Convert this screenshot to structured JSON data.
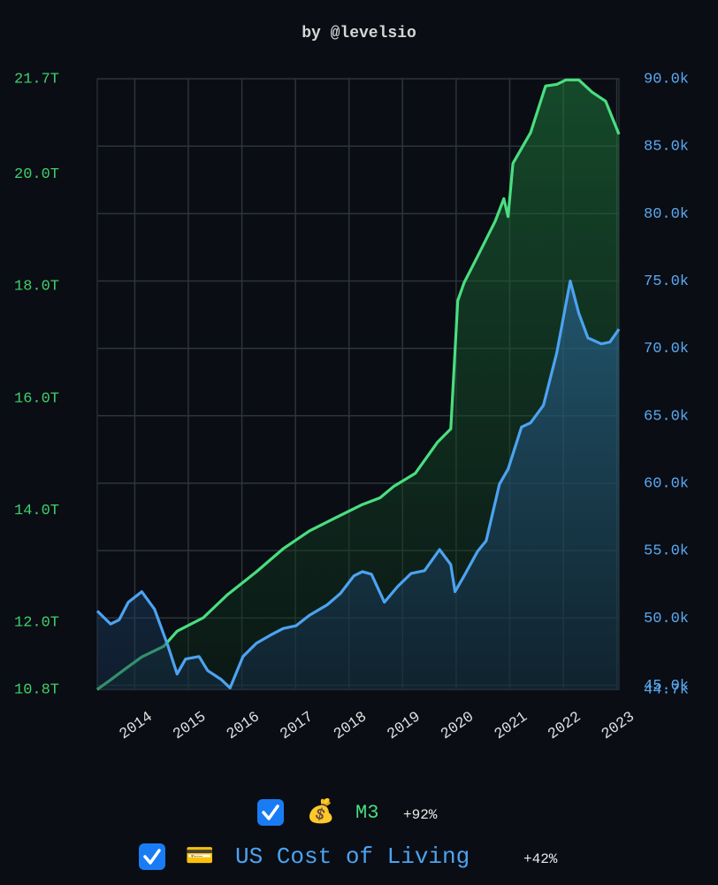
{
  "chart_data": {
    "type": "line",
    "title": "by @levelsio",
    "xlim": [
      2013.3,
      2023.04
    ],
    "xticks": [
      2014,
      2015,
      2016,
      2017,
      2018,
      2019,
      2020,
      2021,
      2022,
      2023
    ],
    "ylim": [
      10.8,
      21.7
    ],
    "yticks": [
      {
        "value": 10.8,
        "label": "10.8T"
      },
      {
        "value": 12,
        "label": "12.0T"
      },
      {
        "value": 14,
        "label": "14.0T"
      },
      {
        "value": 16,
        "label": "16.0T"
      },
      {
        "value": 18,
        "label": "18.0T"
      },
      {
        "value": 20,
        "label": "20.0T"
      },
      {
        "value": 21.7,
        "label": "21.7T"
      }
    ],
    "y2lim": [
      44700,
      90000
    ],
    "y2ticks": [
      {
        "value": 44700,
        "label": "44.7k"
      },
      {
        "value": 45000,
        "label": "45.0k"
      },
      {
        "value": 50000,
        "label": "50.0k"
      },
      {
        "value": 55000,
        "label": "55.0k"
      },
      {
        "value": 60000,
        "label": "60.0k"
      },
      {
        "value": 65000,
        "label": "65.0k"
      },
      {
        "value": 70000,
        "label": "70.0k"
      },
      {
        "value": 75000,
        "label": "75.0k"
      },
      {
        "value": 80000,
        "label": "80.0k"
      },
      {
        "value": 85000,
        "label": "85.0k"
      },
      {
        "value": 90000,
        "label": "90.0k"
      }
    ],
    "grid": true,
    "series": [
      {
        "name": "M3",
        "icon": "💰",
        "change": "+92%",
        "color": "#4ade80",
        "axis": "y",
        "x": [
          2013.3,
          2013.55,
          2013.8,
          2014.13,
          2014.54,
          2014.79,
          2015.28,
          2015.73,
          2016.27,
          2016.77,
          2017.26,
          2017.76,
          2018.25,
          2018.58,
          2018.83,
          2019.24,
          2019.65,
          2019.9,
          2020.03,
          2020.15,
          2020.4,
          2020.73,
          2020.89,
          2020.97,
          2021.06,
          2021.39,
          2021.67,
          2021.88,
          2022.05,
          2022.29,
          2022.54,
          2022.79,
          2023.04
        ],
        "values": [
          10.8,
          10.97,
          11.15,
          11.38,
          11.57,
          11.84,
          12.08,
          12.49,
          12.9,
          13.31,
          13.63,
          13.87,
          14.1,
          14.22,
          14.42,
          14.66,
          15.21,
          15.45,
          17.74,
          18.06,
          18.53,
          19.16,
          19.56,
          19.24,
          20.19,
          20.74,
          21.57,
          21.6,
          21.68,
          21.68,
          21.46,
          21.3,
          20.71
        ]
      },
      {
        "name": "US Cost of Living",
        "icon": "💳",
        "change": "+42%",
        "color": "#4ca3f0",
        "axis": "y2",
        "x": [
          2013.3,
          2013.55,
          2013.71,
          2013.88,
          2014.13,
          2014.37,
          2014.62,
          2014.79,
          2014.95,
          2015.2,
          2015.36,
          2015.61,
          2015.78,
          2016.02,
          2016.27,
          2016.52,
          2016.77,
          2017.01,
          2017.26,
          2017.59,
          2017.84,
          2018.09,
          2018.25,
          2018.42,
          2018.66,
          2018.91,
          2019.16,
          2019.41,
          2019.69,
          2019.9,
          2019.98,
          2020.15,
          2020.4,
          2020.56,
          2020.81,
          2020.97,
          2021.22,
          2021.39,
          2021.63,
          2021.88,
          2022.13,
          2022.29,
          2022.46,
          2022.71,
          2022.87,
          2023.04
        ],
        "values": [
          50520,
          49550,
          49870,
          51170,
          51950,
          50650,
          47920,
          45840,
          46950,
          47140,
          46100,
          45450,
          44810,
          47140,
          48120,
          48700,
          49220,
          49420,
          50200,
          50970,
          51820,
          53120,
          53440,
          53250,
          51170,
          52340,
          53310,
          53510,
          55070,
          53960,
          51950,
          53120,
          54940,
          55720,
          59940,
          61040,
          64160,
          64480,
          65780,
          69680,
          75000,
          72600,
          70780,
          70330,
          70460,
          71430
        ]
      }
    ]
  }
}
